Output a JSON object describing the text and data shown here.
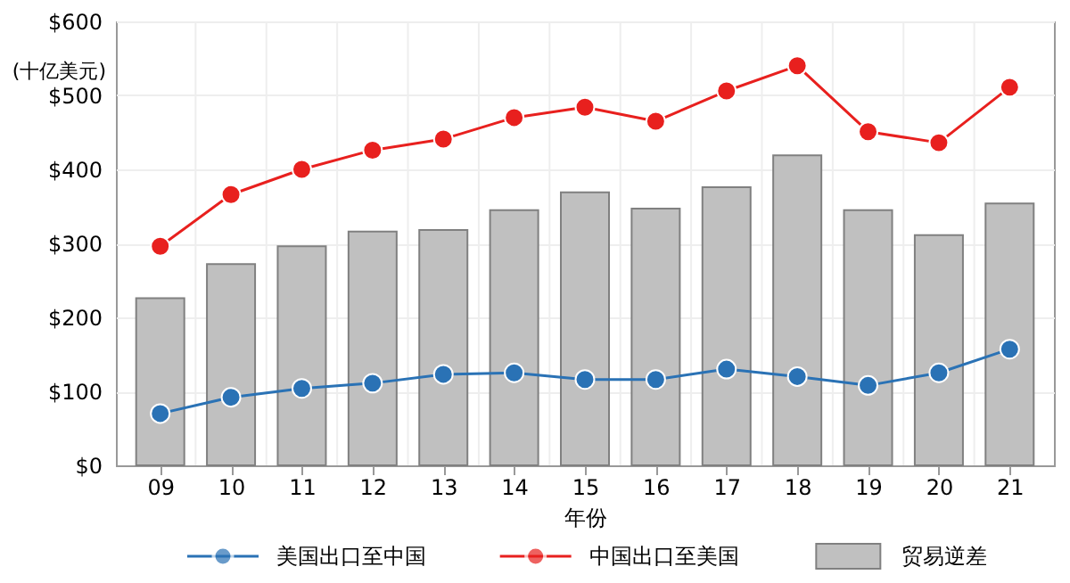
{
  "chart_data": {
    "type": "bar",
    "xlabel": "年份",
    "ylabel": "(十亿美元)",
    "categories": [
      "09",
      "10",
      "11",
      "12",
      "13",
      "14",
      "15",
      "16",
      "17",
      "18",
      "19",
      "20",
      "21"
    ],
    "series": [
      {
        "name": "美国出口至中国",
        "type": "line",
        "color": "#2a72b5",
        "marker": "circle",
        "values": [
          70,
          92,
          104,
          111,
          123,
          125,
          116,
          116,
          130,
          120,
          108,
          125,
          157
        ]
      },
      {
        "name": "中国出口至美国",
        "type": "line",
        "color": "#e8201e",
        "marker": "circle",
        "values": [
          296,
          366,
          400,
          426,
          441,
          470,
          484,
          465,
          506,
          540,
          451,
          436,
          511
        ]
      },
      {
        "name": "贸易逆差",
        "color": "#c0c0c0",
        "values": [
          226,
          272,
          296,
          316,
          318,
          345,
          369,
          347,
          376,
          419,
          345,
          311,
          354
        ]
      }
    ],
    "ylim": [
      0,
      600
    ],
    "yticks": [
      {
        "value": 0,
        "label": "$0"
      },
      {
        "value": 100,
        "label": "$100"
      },
      {
        "value": 200,
        "label": "$200"
      },
      {
        "value": 300,
        "label": "$300"
      },
      {
        "value": 400,
        "label": "$400"
      },
      {
        "value": 500,
        "label": "$500"
      },
      {
        "value": 600,
        "label": "$600"
      }
    ],
    "grid": true,
    "legend": "bottom"
  }
}
